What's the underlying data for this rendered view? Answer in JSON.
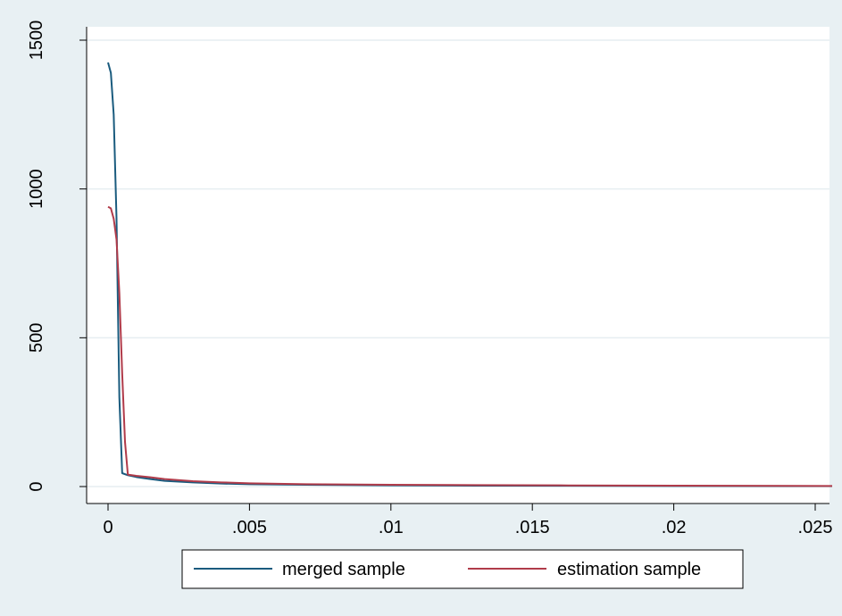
{
  "chart_data": {
    "type": "line",
    "title": "",
    "xlabel": "",
    "ylabel": "",
    "xlim": [
      0,
      0.026
    ],
    "ylim": [
      0,
      1550
    ],
    "xticks": [
      0,
      0.005,
      0.01,
      0.015,
      0.02,
      0.025
    ],
    "xtick_labels": [
      "0",
      ".005",
      ".01",
      ".015",
      ".02",
      ".025"
    ],
    "yticks": [
      0,
      500,
      1000,
      1500
    ],
    "ytick_labels": [
      "0",
      "500",
      "1000",
      "1500"
    ],
    "grid": true,
    "legend_position": "bottom-center",
    "series": [
      {
        "name": "merged sample",
        "color": "#1a5b7e",
        "x": [
          0,
          0.0001,
          0.0002,
          0.0003,
          0.0004,
          0.0005,
          0.0007,
          0.001,
          0.0015,
          0.002,
          0.003,
          0.004,
          0.005,
          0.007,
          0.01,
          0.013,
          0.016,
          0.02,
          0.0256
        ],
        "y": [
          1425,
          1390,
          1250,
          900,
          300,
          45,
          38,
          32,
          25,
          19,
          14,
          10,
          8,
          6,
          4,
          3,
          2.5,
          2,
          1.5
        ]
      },
      {
        "name": "estimation sample",
        "color": "#b03b4a",
        "x": [
          0,
          0.0001,
          0.0002,
          0.0003,
          0.0004,
          0.0005,
          0.0006,
          0.0007,
          0.001,
          0.0015,
          0.002,
          0.003,
          0.004,
          0.005,
          0.007,
          0.01,
          0.013,
          0.016,
          0.02,
          0.0256
        ],
        "y": [
          940,
          935,
          900,
          830,
          650,
          380,
          150,
          40,
          36,
          31,
          25,
          18,
          14,
          11,
          8,
          6,
          5,
          4,
          3,
          2
        ]
      }
    ]
  }
}
